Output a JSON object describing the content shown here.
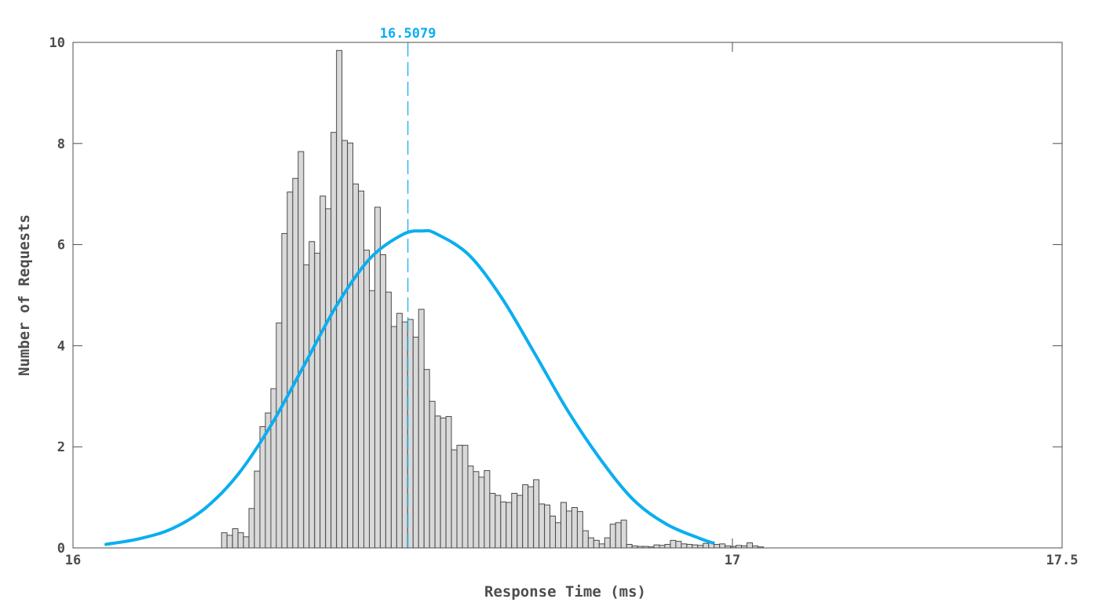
{
  "chart_data": {
    "type": "bar",
    "title": "",
    "xlabel": "Response Time (ms)",
    "ylabel": "Number of Requests",
    "xlim": [
      16,
      17.5
    ],
    "ylim": [
      0,
      10
    ],
    "xticks": [
      {
        "value": 16,
        "label": "16"
      },
      {
        "value": 17,
        "label": "17"
      },
      {
        "value": 17.5,
        "label": "17.5"
      }
    ],
    "yticks": [
      {
        "value": 0,
        "label": "0"
      },
      {
        "value": 2,
        "label": "2"
      },
      {
        "value": 4,
        "label": "4"
      },
      {
        "value": 6,
        "label": "6"
      },
      {
        "value": 8,
        "label": "8"
      },
      {
        "value": 10,
        "label": "10"
      }
    ],
    "grid": false,
    "bar_color": "#d9d9d9",
    "bar_edge_color": "#4a4a4a",
    "histogram": {
      "start": 16.217,
      "bin_width": 0.0083,
      "counts": [
        0,
        0.3,
        0.25,
        0.38,
        0.3,
        0.22,
        0.78,
        1.52,
        2.4,
        2.67,
        3.15,
        4.45,
        6.22,
        7.04,
        7.31,
        7.84,
        5.6,
        6.06,
        5.83,
        6.96,
        6.71,
        8.22,
        9.84,
        8.06,
        8.01,
        7.2,
        7.06,
        5.89,
        5.09,
        6.74,
        5.8,
        5.06,
        4.38,
        4.64,
        4.47,
        4.52,
        4.17,
        4.72,
        3.53,
        2.9,
        2.61,
        2.57,
        2.6,
        1.94,
        2.03,
        2.03,
        1.62,
        1.51,
        1.4,
        1.53,
        1.08,
        1.04,
        0.91,
        0.9,
        1.08,
        1.04,
        1.25,
        1.21,
        1.35,
        0.87,
        0.85,
        0.63,
        0.5,
        0.9,
        0.73,
        0.8,
        0.72,
        0.34,
        0.2,
        0.15,
        0.08,
        0.2,
        0.47,
        0.5,
        0.55,
        0.07,
        0.04,
        0.03,
        0.03,
        0.02,
        0.06,
        0.05,
        0.07,
        0.15,
        0.13,
        0.08,
        0.07,
        0.06,
        0.05,
        0.09,
        0.12,
        0.07,
        0.08,
        0.04,
        0.03,
        0.05,
        0.04,
        0.1,
        0.04,
        0.02
      ]
    },
    "fit_curve": {
      "color": "#0aaef0",
      "points": [
        {
          "x": 16.05,
          "y": 0.07
        },
        {
          "x": 16.1,
          "y": 0.18
        },
        {
          "x": 16.15,
          "y": 0.38
        },
        {
          "x": 16.2,
          "y": 0.78
        },
        {
          "x": 16.25,
          "y": 1.45
        },
        {
          "x": 16.3,
          "y": 2.42
        },
        {
          "x": 16.35,
          "y": 3.6
        },
        {
          "x": 16.4,
          "y": 4.8
        },
        {
          "x": 16.45,
          "y": 5.72
        },
        {
          "x": 16.5,
          "y": 6.2
        },
        {
          "x": 16.53,
          "y": 6.27
        },
        {
          "x": 16.55,
          "y": 6.22
        },
        {
          "x": 16.6,
          "y": 5.8
        },
        {
          "x": 16.65,
          "y": 4.95
        },
        {
          "x": 16.7,
          "y": 3.85
        },
        {
          "x": 16.75,
          "y": 2.72
        },
        {
          "x": 16.8,
          "y": 1.75
        },
        {
          "x": 16.85,
          "y": 0.95
        },
        {
          "x": 16.9,
          "y": 0.47
        },
        {
          "x": 16.95,
          "y": 0.19
        },
        {
          "x": 16.97,
          "y": 0.1
        }
      ]
    },
    "mean": {
      "value": 16.5079,
      "label": "16.5079",
      "color": "#0aaef0",
      "line_style": "dashed"
    }
  }
}
